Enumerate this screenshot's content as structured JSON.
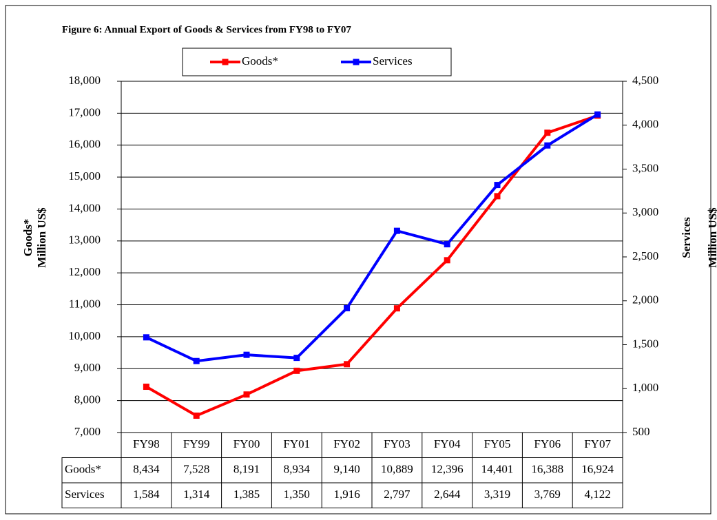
{
  "chart_data": {
    "type": "line",
    "title": "Figure 6: Annual Export of Goods & Services from FY98 to FY07",
    "y_label": [
      "Goods*",
      "Million US$"
    ],
    "y2_label": [
      "Services",
      "Million US$"
    ],
    "categories": [
      "FY98",
      "FY99",
      "FY00",
      "FY01",
      "FY02",
      "FY03",
      "FY04",
      "FY05",
      "FY06",
      "FY07"
    ],
    "series": [
      {
        "name": "Goods*",
        "color": "#ff0000",
        "axis": "y",
        "values": [
          8434,
          7528,
          8191,
          8934,
          9140,
          10889,
          12396,
          14401,
          16388,
          16924
        ],
        "value_labels": [
          "8,434",
          "7,528",
          "8,191",
          "8,934",
          "9,140",
          "10,889",
          "12,396",
          "14,401",
          "16,388",
          "16,924"
        ]
      },
      {
        "name": "Services",
        "color": "#0000ff",
        "axis": "y2",
        "values": [
          1584,
          1314,
          1385,
          1350,
          1916,
          2797,
          2644,
          3319,
          3769,
          4122
        ],
        "value_labels": [
          "1,584",
          "1,314",
          "1,385",
          "1,350",
          "1,916",
          "2,797",
          "2,644",
          "3,319",
          "3,769",
          "4,122"
        ]
      }
    ],
    "ylim": [
      7000,
      18000
    ],
    "yticks": [
      {
        "value": 7000,
        "label": "7,000"
      },
      {
        "value": 8000,
        "label": "8,000"
      },
      {
        "value": 9000,
        "label": "9,000"
      },
      {
        "value": 10000,
        "label": "10,000"
      },
      {
        "value": 11000,
        "label": "11,000"
      },
      {
        "value": 12000,
        "label": "12,000"
      },
      {
        "value": 13000,
        "label": "13,000"
      },
      {
        "value": 14000,
        "label": "14,000"
      },
      {
        "value": 15000,
        "label": "15,000"
      },
      {
        "value": 16000,
        "label": "16,000"
      },
      {
        "value": 17000,
        "label": "17,000"
      },
      {
        "value": 18000,
        "label": "18,000"
      }
    ],
    "y2lim": [
      500,
      4500
    ],
    "y2ticks": [
      500,
      {
        "value": 1000,
        "label": "1,000"
      },
      {
        "value": 1500,
        "label": "1,500"
      },
      {
        "value": 2000,
        "label": "2,000"
      },
      {
        "value": 2500,
        "label": "2,500"
      },
      {
        "value": 3000,
        "label": "3,000"
      },
      {
        "value": 3500,
        "label": "3,500"
      },
      {
        "value": 4000,
        "label": "4,000"
      },
      {
        "value": 4500,
        "label": "4,500"
      }
    ],
    "grid": true,
    "legend": "top"
  }
}
